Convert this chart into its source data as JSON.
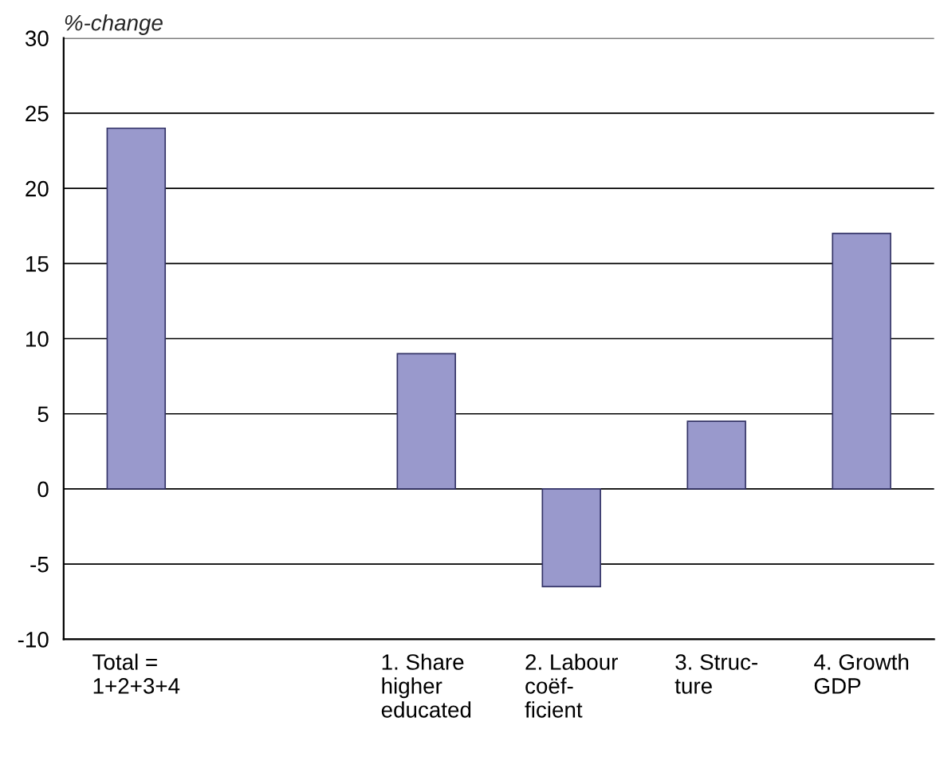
{
  "chart_data": {
    "type": "bar",
    "ylabel": "%-change",
    "categories": [
      "Total =\n1+2+3+4",
      null,
      "1. Share\nhigher\neducated",
      "2. Labour\ncoëf-\nficient",
      "3. Struc-\nture",
      "4. Growth\nGDP"
    ],
    "values": [
      24,
      null,
      9,
      -6.5,
      4.5,
      17
    ],
    "color": "#9999cc",
    "ylim": [
      -10,
      30
    ],
    "yticks": [
      -10,
      -5,
      0,
      5,
      10,
      15,
      20,
      25,
      30
    ],
    "grid": "y",
    "legend": false
  }
}
